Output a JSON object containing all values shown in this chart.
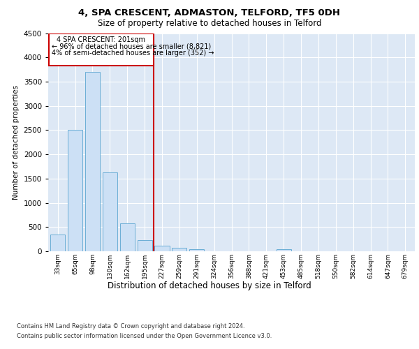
{
  "title1": "4, SPA CRESCENT, ADMASTON, TELFORD, TF5 0DH",
  "title2": "Size of property relative to detached houses in Telford",
  "xlabel": "Distribution of detached houses by size in Telford",
  "ylabel": "Number of detached properties",
  "categories": [
    "33sqm",
    "65sqm",
    "98sqm",
    "130sqm",
    "162sqm",
    "195sqm",
    "227sqm",
    "259sqm",
    "291sqm",
    "324sqm",
    "356sqm",
    "388sqm",
    "421sqm",
    "453sqm",
    "485sqm",
    "518sqm",
    "550sqm",
    "582sqm",
    "614sqm",
    "647sqm",
    "679sqm"
  ],
  "values": [
    350,
    2500,
    3700,
    1625,
    575,
    225,
    110,
    65,
    50,
    0,
    0,
    0,
    0,
    50,
    0,
    0,
    0,
    0,
    0,
    0,
    0
  ],
  "bar_color": "#cce0f5",
  "bar_edge_color": "#6baed6",
  "vline_x": 5.5,
  "vline_color": "#cc0000",
  "annotation_text_line1": "4 SPA CRESCENT: 201sqm",
  "annotation_text_line2": "← 96% of detached houses are smaller (8,821)",
  "annotation_text_line3": "4% of semi-detached houses are larger (352) →",
  "annotation_box_color": "#cc0000",
  "ylim": [
    0,
    4500
  ],
  "yticks": [
    0,
    500,
    1000,
    1500,
    2000,
    2500,
    3000,
    3500,
    4000,
    4500
  ],
  "background_color": "#dde8f5",
  "grid_color": "#ffffff",
  "footnote1": "Contains HM Land Registry data © Crown copyright and database right 2024.",
  "footnote2": "Contains public sector information licensed under the Open Government Licence v3.0."
}
